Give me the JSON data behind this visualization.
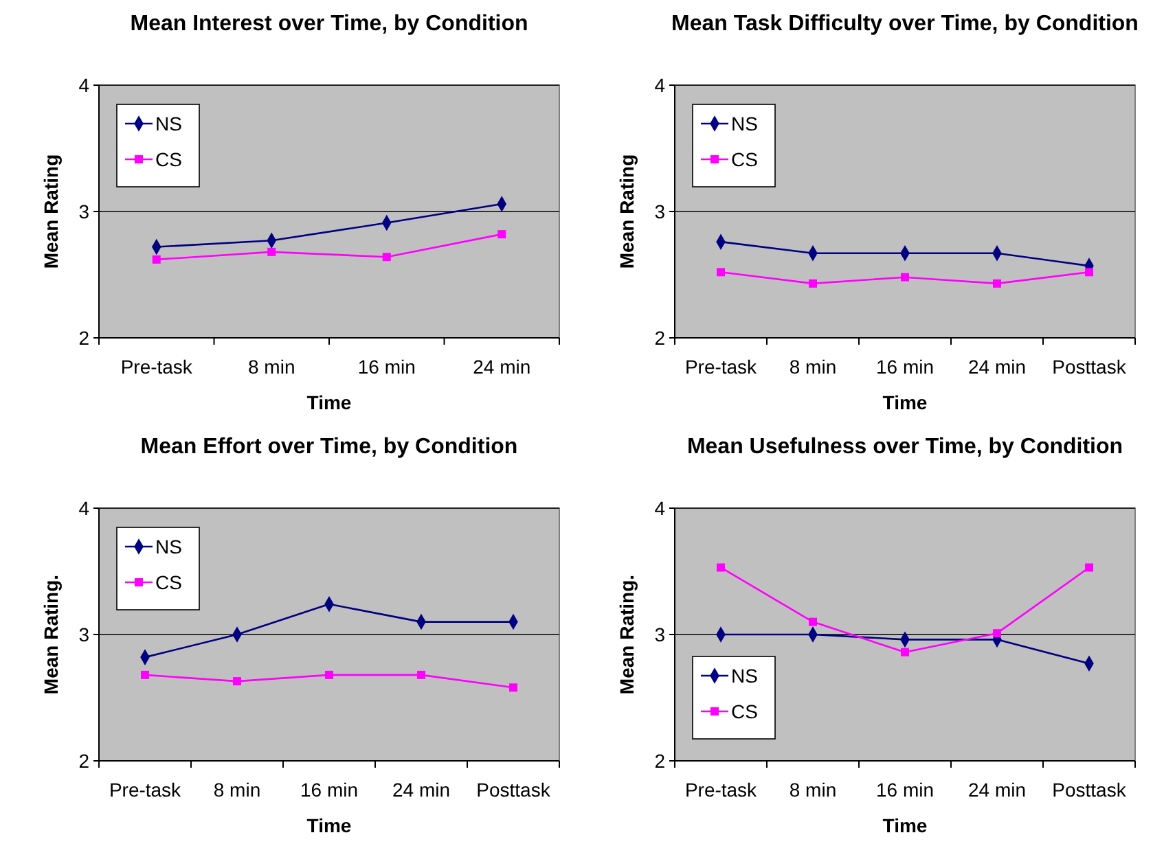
{
  "chart_data": [
    {
      "type": "line",
      "title": "Mean Interest over Time, by Condition",
      "xlabel": "Time",
      "ylabel": "Mean Rating",
      "categories": [
        "Pre-task",
        "8 min",
        "16 min",
        "24 min"
      ],
      "ylim": [
        2,
        4
      ],
      "yticks": [
        2,
        3,
        4
      ],
      "grid": "y",
      "legend": "top left",
      "series": [
        {
          "name": "NS",
          "color": "#000080",
          "marker": "diamond",
          "values": [
            2.72,
            2.77,
            2.91,
            3.06
          ]
        },
        {
          "name": "CS",
          "color": "#ff00ff",
          "marker": "square",
          "values": [
            2.62,
            2.68,
            2.64,
            2.82
          ]
        }
      ]
    },
    {
      "type": "line",
      "title": "Mean Task Difficulty over Time, by Condition",
      "xlabel": "Time",
      "ylabel": "Mean Rating",
      "categories": [
        "Pre-task",
        "8 min",
        "16 min",
        "24 min",
        "Posttask"
      ],
      "ylim": [
        2,
        4
      ],
      "yticks": [
        2,
        3,
        4
      ],
      "grid": "y",
      "legend": "top left",
      "series": [
        {
          "name": "NS",
          "color": "#000080",
          "marker": "diamond",
          "values": [
            2.76,
            2.67,
            2.67,
            2.67,
            2.57
          ]
        },
        {
          "name": "CS",
          "color": "#ff00ff",
          "marker": "square",
          "values": [
            2.52,
            2.43,
            2.48,
            2.43,
            2.52
          ]
        }
      ]
    },
    {
      "type": "line",
      "title": "Mean Effort over Time, by Condition",
      "xlabel": "Time",
      "ylabel": "Mean Rating.",
      "categories": [
        "Pre-task",
        "8 min",
        "16 min",
        "24 min",
        "Posttask"
      ],
      "ylim": [
        2,
        4
      ],
      "yticks": [
        2,
        3,
        4
      ],
      "grid": "y",
      "legend": "top left",
      "series": [
        {
          "name": "NS",
          "color": "#000080",
          "marker": "diamond",
          "values": [
            2.82,
            3.0,
            3.24,
            3.1,
            3.1
          ]
        },
        {
          "name": "CS",
          "color": "#ff00ff",
          "marker": "square",
          "values": [
            2.68,
            2.63,
            2.68,
            2.68,
            2.58
          ]
        }
      ]
    },
    {
      "type": "line",
      "title": "Mean Usefulness over Time, by Condition",
      "xlabel": "Time",
      "ylabel": "Mean Rating.",
      "categories": [
        "Pre-task",
        "8 min",
        "16 min",
        "24 min",
        "Posttask"
      ],
      "ylim": [
        2,
        4
      ],
      "yticks": [
        2,
        3,
        4
      ],
      "grid": "y",
      "legend": "bottom left",
      "series": [
        {
          "name": "NS",
          "color": "#000080",
          "marker": "diamond",
          "values": [
            3.0,
            3.0,
            2.96,
            2.96,
            2.77
          ]
        },
        {
          "name": "CS",
          "color": "#ff00ff",
          "marker": "square",
          "values": [
            3.53,
            3.1,
            2.86,
            3.01,
            3.53
          ]
        }
      ]
    }
  ]
}
